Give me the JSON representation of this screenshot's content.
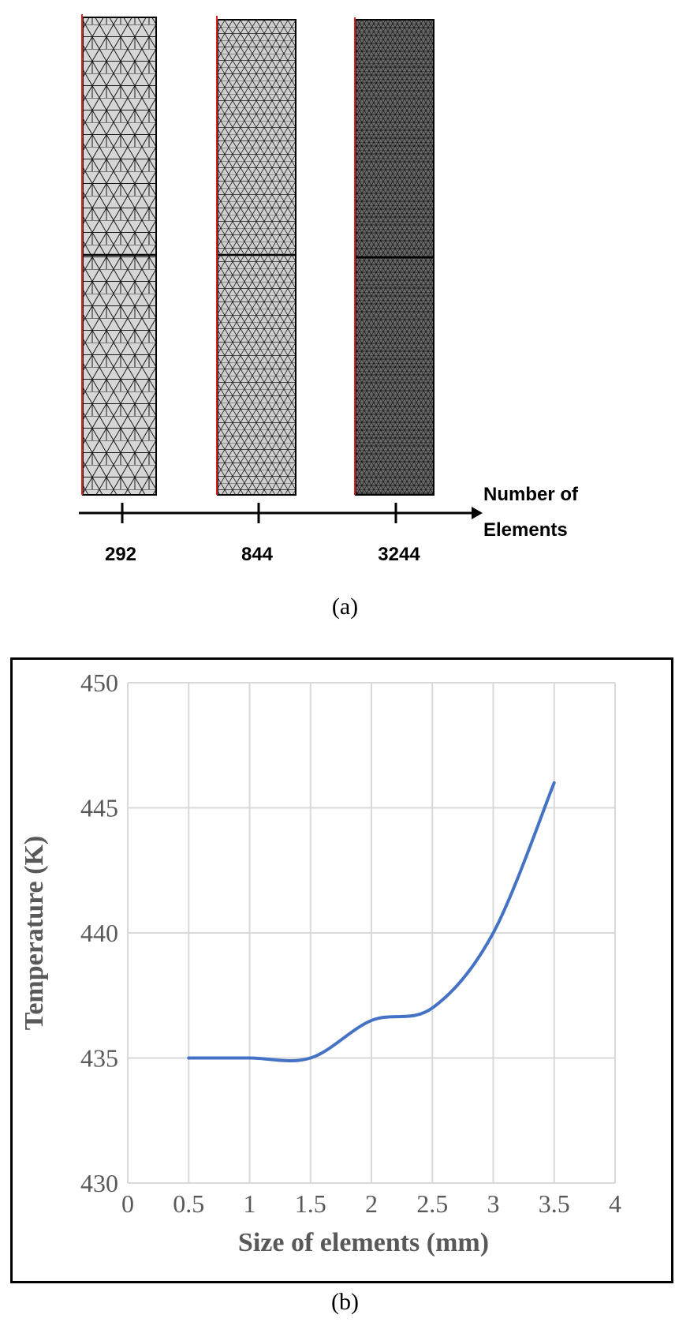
{
  "panel_a": {
    "axis_label_line1": "Number of",
    "axis_label_line2": "Elements",
    "meshes": [
      {
        "label": "292"
      },
      {
        "label": "844"
      },
      {
        "label": "3244"
      }
    ],
    "caption": "(a)"
  },
  "panel_b": {
    "caption": "(b)"
  },
  "chart_data": {
    "type": "line",
    "title": "",
    "xlabel": "Size of elements (mm)",
    "ylabel": "Temperature (K)",
    "xlim": [
      0,
      4
    ],
    "ylim": [
      430,
      450
    ],
    "xticks": [
      "0",
      "0.5",
      "1",
      "1.5",
      "2",
      "2.5",
      "3",
      "3.5",
      "4"
    ],
    "yticks": [
      "430",
      "435",
      "440",
      "445",
      "450"
    ],
    "grid": true,
    "series": [
      {
        "color": "#4472C4",
        "x": [
          0.5,
          1.0,
          1.5,
          2.0,
          2.5,
          3.0,
          3.5
        ],
        "y": [
          435.0,
          435.0,
          435.0,
          436.5,
          437.0,
          440.0,
          446.0
        ]
      }
    ]
  }
}
